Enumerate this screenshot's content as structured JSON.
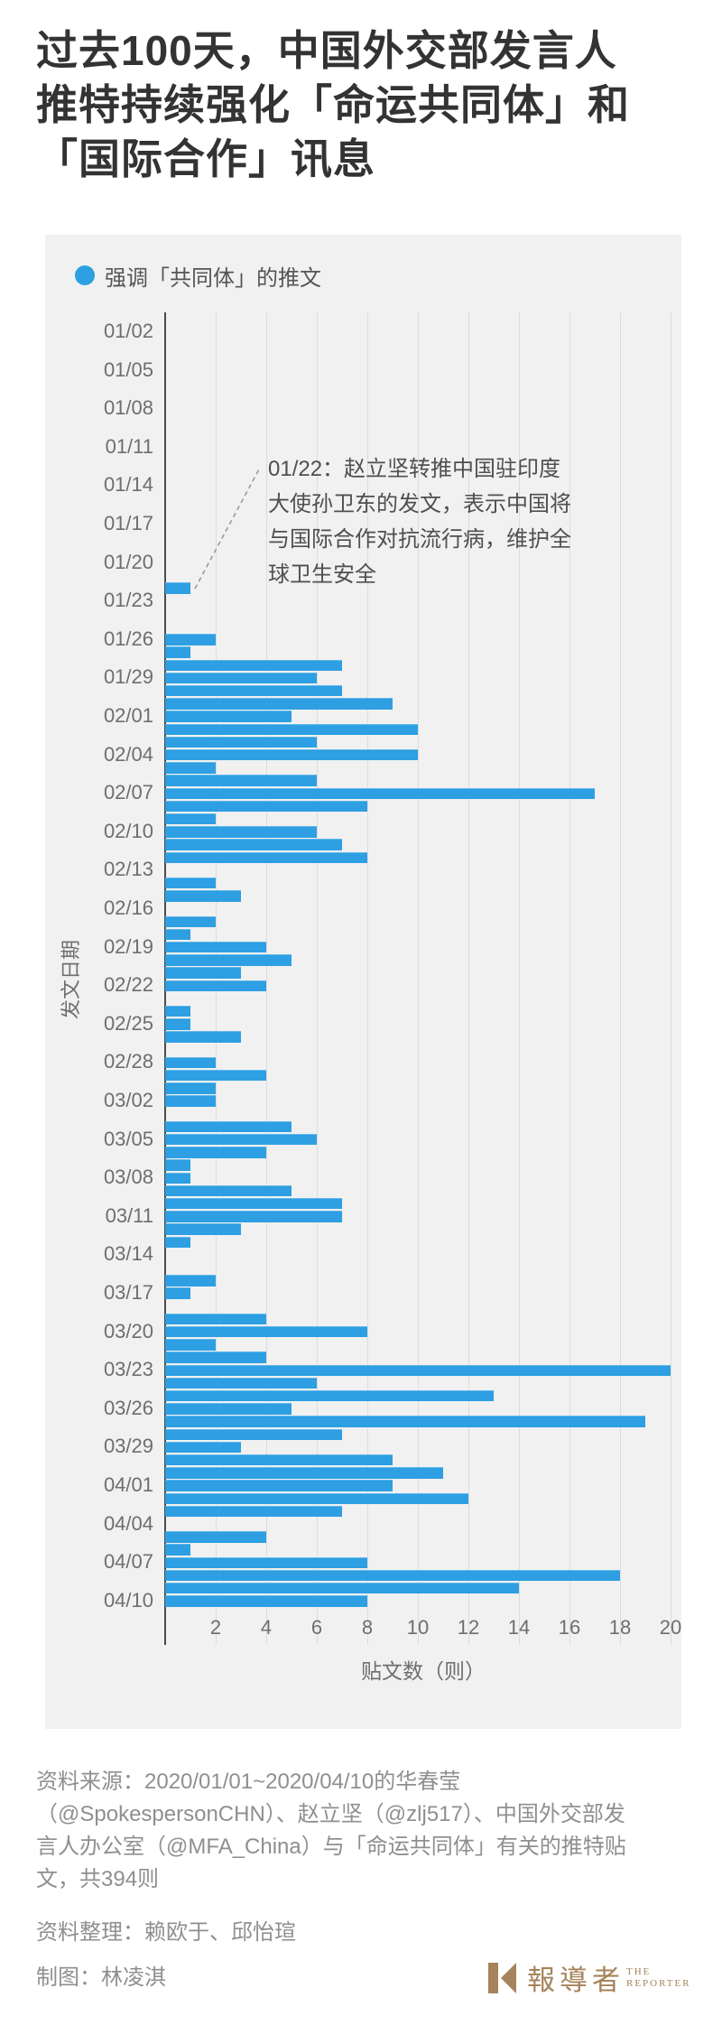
{
  "title": {
    "lines": [
      "过去100天，中国外交部发言人",
      "推特持续强化「命运共同体」和",
      "「国际合作」讯息"
    ]
  },
  "legend": {
    "label": "强调「共同体」的推文"
  },
  "chart_data": {
    "type": "bar",
    "orientation": "horizontal",
    "series_name": "强调「共同体」的推文",
    "xlabel": "贴文数（则）",
    "ylabel": "发文日期",
    "xlim": [
      0,
      20.5
    ],
    "xticks": [
      2,
      4,
      6,
      8,
      10,
      12,
      14,
      16,
      18,
      20
    ],
    "grid": "vertical gridlines every 2 units",
    "y_labels_shown_every": 3,
    "total_posts": 394,
    "dates": [
      "01/02",
      "01/03",
      "01/04",
      "01/05",
      "01/06",
      "01/07",
      "01/08",
      "01/09",
      "01/10",
      "01/11",
      "01/12",
      "01/13",
      "01/14",
      "01/15",
      "01/16",
      "01/17",
      "01/18",
      "01/19",
      "01/20",
      "01/21",
      "01/22",
      "01/23",
      "01/24",
      "01/25",
      "01/26",
      "01/27",
      "01/28",
      "01/29",
      "01/30",
      "01/31",
      "02/01",
      "02/02",
      "02/03",
      "02/04",
      "02/05",
      "02/06",
      "02/07",
      "02/08",
      "02/09",
      "02/10",
      "02/11",
      "02/12",
      "02/13",
      "02/14",
      "02/15",
      "02/16",
      "02/17",
      "02/18",
      "02/19",
      "02/20",
      "02/21",
      "02/22",
      "02/23",
      "02/24",
      "02/25",
      "02/26",
      "02/27",
      "02/28",
      "02/29",
      "03/01",
      "03/02",
      "03/03",
      "03/04",
      "03/05",
      "03/06",
      "03/07",
      "03/08",
      "03/09",
      "03/10",
      "03/11",
      "03/12",
      "03/13",
      "03/14",
      "03/15",
      "03/16",
      "03/17",
      "03/18",
      "03/19",
      "03/20",
      "03/21",
      "03/22",
      "03/23",
      "03/24",
      "03/25",
      "03/26",
      "03/27",
      "03/28",
      "03/29",
      "03/30",
      "03/31",
      "04/01",
      "04/02",
      "04/03",
      "04/04",
      "04/05",
      "04/06",
      "04/07",
      "04/08",
      "04/09",
      "04/10"
    ],
    "values": [
      0,
      0,
      0,
      0,
      0,
      0,
      0,
      0,
      0,
      0,
      0,
      0,
      0,
      0,
      0,
      0,
      0,
      0,
      0,
      0,
      1,
      0,
      0,
      0,
      2,
      1,
      7,
      6,
      7,
      9,
      5,
      10,
      6,
      10,
      2,
      6,
      17,
      8,
      2,
      6,
      7,
      8,
      0,
      2,
      3,
      0,
      2,
      1,
      4,
      5,
      3,
      4,
      0,
      1,
      1,
      3,
      0,
      2,
      4,
      2,
      2,
      0,
      5,
      6,
      4,
      1,
      1,
      5,
      7,
      7,
      3,
      1,
      0,
      0,
      2,
      1,
      0,
      4,
      8,
      2,
      4,
      20,
      6,
      13,
      5,
      19,
      7,
      3,
      9,
      11,
      9,
      12,
      7,
      0,
      4,
      1,
      8,
      18,
      14,
      8
    ]
  },
  "annotation": {
    "lines": [
      "01/22：赵立坚转推中国驻印度",
      "大使孙卫东的发文，表示中国将",
      "与国际合作对抗流行病，维护全",
      "球卫生安全"
    ]
  },
  "footer": {
    "source_lines": [
      "资料来源：2020/01/01~2020/04/10的华春莹",
      "（@SpokespersonCHN）、赵立坚（@zlj517）、中国外交部发",
      "言人办公室（@MFA_China）与「命运共同体」有关的推特贴",
      "文，共394则"
    ],
    "editors": "资料整理：赖欧于、邱怡瑄",
    "credit": "制图：林凌淇"
  },
  "logo": {
    "cjk": "報導者",
    "en_line1": "THE",
    "en_line2": "REPORTER"
  },
  "colors": {
    "bar": "#2D9FE2",
    "panel_bg": "#F1F1F1",
    "gridline": "#DCDCDC",
    "axis_line": "#4B4B4B",
    "title_text": "#333333",
    "label_text": "#6E6E6E",
    "annotation_text": "#4F4F4F",
    "footer_text": "#8F8F8F",
    "logo_gold": "#A5835B"
  }
}
